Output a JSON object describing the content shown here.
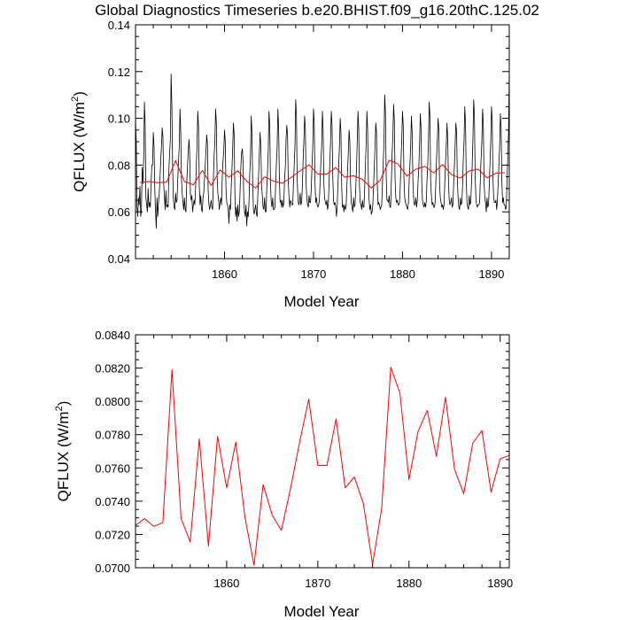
{
  "title": "Global Diagnostics Timeseries b.e20.BHIST.f09_g16.20thC.125.02",
  "chart_data": [
    {
      "type": "line",
      "xlabel": "Model Year",
      "ylabel_base": "QFLUX (W/m",
      "ylabel_sup": "2",
      "ylabel_close": ")",
      "xlim": [
        1850,
        1892
      ],
      "ylim": [
        0.04,
        0.14
      ],
      "xticks": [
        1860,
        1870,
        1880,
        1890
      ],
      "xtick_labels": [
        "1860",
        "1870",
        "1880",
        "1890"
      ],
      "yticks": [
        0.04,
        0.06,
        0.08,
        0.1,
        0.12,
        0.14
      ],
      "ytick_labels": [
        "0.04",
        "0.06",
        "0.08",
        "0.10",
        "0.12",
        "0.14"
      ],
      "series": [
        {
          "name": "monthly",
          "color": "#000000",
          "x_start": 1850.0,
          "x_step": 0.0833333,
          "values": [
            0.1,
            0.09,
            0.062,
            0.058,
            0.066,
            0.063,
            0.071,
            0.058,
            0.061,
            0.079,
            0.072,
            0.082,
            0.107,
            0.098,
            0.066,
            0.063,
            0.06,
            0.07,
            0.062,
            0.064,
            0.062,
            0.072,
            0.08,
            0.08,
            0.094,
            0.088,
            0.07,
            0.06,
            0.053,
            0.066,
            0.058,
            0.064,
            0.068,
            0.074,
            0.082,
            0.088,
            0.096,
            0.092,
            0.072,
            0.066,
            0.061,
            0.069,
            0.062,
            0.063,
            0.062,
            0.078,
            0.085,
            0.091,
            0.119,
            0.106,
            0.08,
            0.066,
            0.062,
            0.061,
            0.068,
            0.064,
            0.065,
            0.074,
            0.082,
            0.088,
            0.104,
            0.094,
            0.074,
            0.068,
            0.064,
            0.061,
            0.066,
            0.061,
            0.06,
            0.072,
            0.079,
            0.085,
            0.091,
            0.086,
            0.068,
            0.065,
            0.067,
            0.06,
            0.063,
            0.065,
            0.063,
            0.07,
            0.08,
            0.089,
            0.103,
            0.096,
            0.071,
            0.063,
            0.067,
            0.061,
            0.06,
            0.066,
            0.068,
            0.074,
            0.08,
            0.086,
            0.093,
            0.089,
            0.069,
            0.063,
            0.061,
            0.063,
            0.065,
            0.062,
            0.061,
            0.074,
            0.084,
            0.09,
            0.104,
            0.098,
            0.076,
            0.068,
            0.065,
            0.061,
            0.064,
            0.066,
            0.063,
            0.075,
            0.082,
            0.086,
            0.095,
            0.09,
            0.07,
            0.064,
            0.063,
            0.061,
            0.055,
            0.063,
            0.061,
            0.07,
            0.078,
            0.087,
            0.098,
            0.093,
            0.068,
            0.058,
            0.062,
            0.056,
            0.063,
            0.058,
            0.06,
            0.069,
            0.079,
            0.085,
            0.087,
            0.082,
            0.065,
            0.06,
            0.058,
            0.063,
            0.054,
            0.06,
            0.058,
            0.064,
            0.076,
            0.083,
            0.101,
            0.094,
            0.073,
            0.061,
            0.059,
            0.061,
            0.063,
            0.059,
            0.058,
            0.068,
            0.076,
            0.085,
            0.094,
            0.088,
            0.071,
            0.067,
            0.062,
            0.061,
            0.066,
            0.06,
            0.06,
            0.07,
            0.077,
            0.087,
            0.103,
            0.097,
            0.072,
            0.064,
            0.062,
            0.066,
            0.061,
            0.061,
            0.062,
            0.072,
            0.081,
            0.088,
            0.104,
            0.096,
            0.074,
            0.064,
            0.065,
            0.062,
            0.065,
            0.062,
            0.064,
            0.074,
            0.079,
            0.091,
            0.097,
            0.093,
            0.073,
            0.066,
            0.062,
            0.065,
            0.064,
            0.063,
            0.063,
            0.072,
            0.08,
            0.088,
            0.108,
            0.101,
            0.074,
            0.066,
            0.063,
            0.064,
            0.068,
            0.063,
            0.064,
            0.071,
            0.082,
            0.09,
            0.101,
            0.096,
            0.072,
            0.066,
            0.063,
            0.062,
            0.067,
            0.064,
            0.064,
            0.07,
            0.08,
            0.088,
            0.104,
            0.098,
            0.073,
            0.064,
            0.066,
            0.063,
            0.062,
            0.063,
            0.065,
            0.074,
            0.082,
            0.088,
            0.103,
            0.095,
            0.072,
            0.066,
            0.064,
            0.063,
            0.065,
            0.061,
            0.063,
            0.073,
            0.081,
            0.09,
            0.103,
            0.097,
            0.075,
            0.065,
            0.063,
            0.064,
            0.062,
            0.058,
            0.063,
            0.072,
            0.08,
            0.088,
            0.1,
            0.094,
            0.071,
            0.062,
            0.063,
            0.06,
            0.063,
            0.061,
            0.062,
            0.071,
            0.078,
            0.086,
            0.095,
            0.09,
            0.072,
            0.064,
            0.062,
            0.06,
            0.066,
            0.062,
            0.063,
            0.07,
            0.079,
            0.09,
            0.103,
            0.095,
            0.071,
            0.064,
            0.063,
            0.061,
            0.065,
            0.062,
            0.062,
            0.07,
            0.08,
            0.089,
            0.103,
            0.095,
            0.073,
            0.065,
            0.061,
            0.063,
            0.059,
            0.06,
            0.063,
            0.071,
            0.079,
            0.088,
            0.098,
            0.094,
            0.072,
            0.063,
            0.064,
            0.063,
            0.061,
            0.062,
            0.063,
            0.072,
            0.081,
            0.089,
            0.11,
            0.103,
            0.076,
            0.065,
            0.065,
            0.064,
            0.067,
            0.062,
            0.062,
            0.073,
            0.085,
            0.092,
            0.106,
            0.099,
            0.074,
            0.066,
            0.064,
            0.065,
            0.063,
            0.063,
            0.064,
            0.071,
            0.082,
            0.091,
            0.103,
            0.097,
            0.074,
            0.066,
            0.064,
            0.063,
            0.062,
            0.061,
            0.064,
            0.073,
            0.08,
            0.088,
            0.101,
            0.094,
            0.074,
            0.066,
            0.063,
            0.063,
            0.066,
            0.062,
            0.065,
            0.073,
            0.079,
            0.089,
            0.102,
            0.096,
            0.072,
            0.065,
            0.063,
            0.062,
            0.064,
            0.062,
            0.064,
            0.073,
            0.08,
            0.09,
            0.107,
            0.101,
            0.073,
            0.067,
            0.063,
            0.064,
            0.062,
            0.062,
            0.064,
            0.073,
            0.083,
            0.091,
            0.1,
            0.095,
            0.072,
            0.066,
            0.064,
            0.062,
            0.063,
            0.061,
            0.063,
            0.072,
            0.081,
            0.088,
            0.098,
            0.091,
            0.073,
            0.065,
            0.063,
            0.064,
            0.066,
            0.062,
            0.063,
            0.072,
            0.08,
            0.089,
            0.098,
            0.094,
            0.073,
            0.066,
            0.062,
            0.061,
            0.066,
            0.063,
            0.064,
            0.071,
            0.083,
            0.09,
            0.105,
            0.098,
            0.073,
            0.064,
            0.062,
            0.061,
            0.067,
            0.063,
            0.064,
            0.072,
            0.08,
            0.092,
            0.108,
            0.101,
            0.075,
            0.066,
            0.063,
            0.062,
            0.063,
            0.063,
            0.064,
            0.074,
            0.083,
            0.09,
            0.104,
            0.097,
            0.073,
            0.066,
            0.064,
            0.06,
            0.066,
            0.062,
            0.063,
            0.071,
            0.081,
            0.09,
            0.105,
            0.099,
            0.074,
            0.066,
            0.064,
            0.064,
            0.065,
            0.061,
            0.065,
            0.072,
            0.08,
            0.088,
            0.102,
            0.096,
            0.073,
            0.064,
            0.066,
            0.063,
            0.063,
            0.061,
            0.062,
            0.074,
            0.084,
            0.094,
            0.121,
            0.105,
            0.075,
            0.066,
            0.064,
            0.064,
            0.066,
            0.064,
            0.068,
            0.08,
            0.088,
            0.094,
            0.098
          ]
        },
        {
          "name": "annual",
          "color": "#ff0000",
          "x": [
            1850.5,
            1851.5,
            1852.5,
            1853.5,
            1854.5,
            1855.5,
            1856.5,
            1857.5,
            1858.5,
            1859.5,
            1860.5,
            1861.5,
            1862.5,
            1863.5,
            1864.5,
            1865.5,
            1866.5,
            1867.5,
            1868.5,
            1869.5,
            1870.5,
            1871.5,
            1872.5,
            1873.5,
            1874.5,
            1875.5,
            1876.5,
            1877.5,
            1878.5,
            1879.5,
            1880.5,
            1881.5,
            1882.5,
            1883.5,
            1884.5,
            1885.5,
            1886.5,
            1887.5,
            1888.5,
            1889.5,
            1890.5,
            1891.5
          ],
          "values": [
            0.07255,
            0.07295,
            0.07248,
            0.07272,
            0.0819,
            0.07295,
            0.07155,
            0.07775,
            0.0713,
            0.0779,
            0.0748,
            0.07755,
            0.07305,
            0.07015,
            0.075,
            0.07315,
            0.07225,
            0.07475,
            0.07755,
            0.08012,
            0.07615,
            0.07615,
            0.07895,
            0.0748,
            0.07545,
            0.07385,
            0.0702,
            0.07355,
            0.08205,
            0.0805,
            0.0753,
            0.0782,
            0.07945,
            0.0767,
            0.08025,
            0.0759,
            0.07445,
            0.0775,
            0.07825,
            0.07455,
            0.07655,
            0.07675
          ]
        }
      ]
    },
    {
      "type": "line",
      "xlabel": "Model Year",
      "ylabel_base": "QFLUX (W/m",
      "ylabel_sup": "2",
      "ylabel_close": ")",
      "xlim": [
        1850,
        1891
      ],
      "ylim": [
        0.07,
        0.084
      ],
      "xticks": [
        1860,
        1870,
        1880,
        1890
      ],
      "xtick_labels": [
        "1860",
        "1870",
        "1880",
        "1890"
      ],
      "yticks": [
        0.07,
        0.072,
        0.074,
        0.076,
        0.078,
        0.08,
        0.082,
        0.084
      ],
      "ytick_labels": [
        "0.0700",
        "0.0720",
        "0.0740",
        "0.0760",
        "0.0780",
        "0.0800",
        "0.0820",
        "0.0840"
      ],
      "series": [
        {
          "name": "annual",
          "color": "#ff0000",
          "x": [
            1850.0,
            1851.0,
            1852.0,
            1853.0,
            1854.0,
            1855.0,
            1856.0,
            1857.0,
            1858.0,
            1859.0,
            1860.0,
            1861.0,
            1862.0,
            1863.0,
            1864.0,
            1865.0,
            1866.0,
            1867.0,
            1868.0,
            1869.0,
            1870.0,
            1871.0,
            1872.0,
            1873.0,
            1874.0,
            1875.0,
            1876.0,
            1877.0,
            1878.0,
            1879.0,
            1880.0,
            1881.0,
            1882.0,
            1883.0,
            1884.0,
            1885.0,
            1886.0,
            1887.0,
            1888.0,
            1889.0,
            1890.0,
            1891.0
          ],
          "values": [
            0.07255,
            0.07295,
            0.07248,
            0.07272,
            0.0819,
            0.07295,
            0.07155,
            0.07775,
            0.0713,
            0.0779,
            0.0748,
            0.07755,
            0.07305,
            0.07015,
            0.075,
            0.07315,
            0.07225,
            0.07475,
            0.07755,
            0.08012,
            0.07615,
            0.07615,
            0.07895,
            0.0748,
            0.07545,
            0.07385,
            0.0702,
            0.07355,
            0.08205,
            0.0805,
            0.0753,
            0.0782,
            0.07945,
            0.0767,
            0.08025,
            0.0759,
            0.07445,
            0.0775,
            0.07825,
            0.07455,
            0.07655,
            0.07675
          ]
        }
      ]
    }
  ]
}
